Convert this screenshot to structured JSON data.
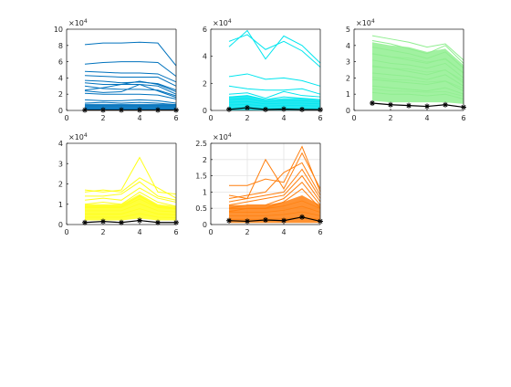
{
  "chart_data": [
    {
      "type": "line",
      "color": "#0072bd",
      "exponent_label": "×10^4",
      "xlim": [
        0,
        6
      ],
      "ylim": [
        0,
        10
      ],
      "xticks": [
        0,
        2,
        4,
        6
      ],
      "yticks": [
        0,
        2,
        4,
        6,
        8,
        10
      ],
      "x": [
        1,
        2,
        3,
        4,
        5,
        6
      ],
      "grid": false,
      "series": [
        {
          "values": [
            8.1,
            8.3,
            8.3,
            8.4,
            8.3,
            5.5
          ]
        },
        {
          "values": [
            5.7,
            5.9,
            6.0,
            6.0,
            5.9,
            4.2
          ]
        },
        {
          "values": [
            4.8,
            4.7,
            4.6,
            4.6,
            4.5,
            3.5
          ]
        },
        {
          "values": [
            4.3,
            4.2,
            4.1,
            4.1,
            4.1,
            3.0
          ]
        },
        {
          "values": [
            3.7,
            3.6,
            3.4,
            3.5,
            3.3,
            2.5
          ]
        },
        {
          "values": [
            3.4,
            3.2,
            3.2,
            3.2,
            3.0,
            2.0
          ]
        },
        {
          "values": [
            2.5,
            2.8,
            3.2,
            3.6,
            3.2,
            2.3
          ]
        },
        {
          "values": [
            3.0,
            2.7,
            2.6,
            2.6,
            2.5,
            1.8
          ]
        },
        {
          "values": [
            2.4,
            2.2,
            2.3,
            3.2,
            2.4,
            1.6
          ]
        },
        {
          "values": [
            2.1,
            2.0,
            2.0,
            2.0,
            1.9,
            1.4
          ]
        },
        {
          "values": [
            1.3,
            1.2,
            1.2,
            1.3,
            1.2,
            0.9
          ]
        },
        {
          "values": [
            0.9,
            1.0,
            0.9,
            1.0,
            0.9,
            0.7
          ]
        }
      ],
      "band": {
        "low": [
          0.0,
          0.0,
          0.0,
          0.0,
          0.0,
          0.0
        ],
        "high": [
          0.8,
          0.8,
          0.8,
          0.8,
          0.8,
          0.8
        ]
      },
      "mean": [
        0.05,
        0.05,
        0.05,
        0.05,
        0.05,
        0.05
      ]
    },
    {
      "type": "line",
      "color": "#00e5ee",
      "exponent_label": "×10^4",
      "xlim": [
        0,
        6
      ],
      "ylim": [
        0,
        6
      ],
      "xticks": [
        0,
        2,
        4,
        6
      ],
      "yticks": [
        0,
        2,
        4,
        6
      ],
      "x": [
        1,
        2,
        3,
        4,
        5,
        6
      ],
      "grid": false,
      "series": [
        {
          "values": [
            4.7,
            5.9,
            3.8,
            5.5,
            4.8,
            3.5
          ]
        },
        {
          "values": [
            5.1,
            5.6,
            4.5,
            5.1,
            4.4,
            3.2
          ]
        },
        {
          "values": [
            2.5,
            2.7,
            2.3,
            2.4,
            2.2,
            1.8
          ]
        },
        {
          "values": [
            1.8,
            1.6,
            1.5,
            1.5,
            1.6,
            1.2
          ]
        },
        {
          "values": [
            1.2,
            1.3,
            0.9,
            1.4,
            1.1,
            1.0
          ]
        },
        {
          "values": [
            1.0,
            1.1,
            0.8,
            1.0,
            0.9,
            0.8
          ]
        }
      ],
      "band": {
        "low": [
          0.0,
          0.0,
          0.0,
          0.0,
          0.0,
          0.0
        ],
        "high": [
          1.0,
          1.1,
          0.8,
          0.9,
          0.9,
          0.8
        ]
      },
      "mean": [
        0.08,
        0.2,
        0.07,
        0.1,
        0.07,
        0.06
      ]
    },
    {
      "type": "line",
      "color": "#90ee90",
      "exponent_label": "×10^4",
      "xlim": [
        0,
        6
      ],
      "ylim": [
        0,
        5
      ],
      "xticks": [
        0,
        2,
        4,
        6
      ],
      "yticks": [
        0,
        1,
        2,
        3,
        4,
        5
      ],
      "x": [
        1,
        2,
        3,
        4,
        5,
        6
      ],
      "grid": false,
      "series": [
        {
          "values": [
            4.6,
            4.4,
            4.2,
            3.9,
            4.1,
            3.1
          ]
        },
        {
          "values": [
            4.3,
            4.1,
            3.8,
            3.5,
            4.0,
            2.9
          ]
        },
        {
          "values": [
            3.9,
            3.7,
            3.5,
            3.2,
            3.6,
            2.6
          ]
        },
        {
          "values": [
            3.5,
            3.3,
            3.1,
            2.9,
            3.2,
            2.3
          ]
        },
        {
          "values": [
            3.1,
            2.9,
            2.8,
            2.6,
            2.9,
            2.0
          ]
        },
        {
          "values": [
            2.7,
            2.6,
            2.4,
            2.2,
            2.5,
            1.7
          ]
        },
        {
          "values": [
            2.3,
            2.2,
            2.1,
            1.9,
            2.2,
            1.5
          ]
        },
        {
          "values": [
            1.9,
            1.8,
            1.7,
            1.6,
            1.8,
            1.2
          ]
        },
        {
          "values": [
            1.5,
            1.4,
            1.3,
            1.2,
            1.4,
            1.0
          ]
        },
        {
          "values": [
            1.1,
            1.0,
            1.0,
            0.9,
            1.0,
            0.7
          ]
        }
      ],
      "band": {
        "low": [
          0.6,
          0.5,
          0.5,
          0.5,
          0.5,
          0.4
        ],
        "high": [
          4.2,
          4.0,
          3.9,
          3.6,
          3.8,
          2.8
        ]
      },
      "mean": [
        0.45,
        0.35,
        0.3,
        0.25,
        0.35,
        0.2
      ]
    },
    {
      "type": "line",
      "color": "#ffff1a",
      "exponent_label": "×10^4",
      "xlim": [
        0,
        6
      ],
      "ylim": [
        0,
        4
      ],
      "xticks": [
        0,
        2,
        4,
        6
      ],
      "yticks": [
        0,
        1,
        2,
        3,
        4
      ],
      "x": [
        1,
        2,
        3,
        4,
        5,
        6
      ],
      "grid": false,
      "series": [
        {
          "values": [
            1.7,
            1.6,
            1.7,
            3.3,
            1.6,
            1.5
          ]
        },
        {
          "values": [
            1.6,
            1.7,
            1.6,
            2.3,
            1.8,
            1.3
          ]
        },
        {
          "values": [
            1.4,
            1.4,
            1.5,
            2.1,
            1.4,
            1.2
          ]
        },
        {
          "values": [
            1.2,
            1.3,
            1.2,
            1.8,
            1.3,
            1.1
          ]
        },
        {
          "values": [
            1.0,
            1.1,
            1.0,
            1.6,
            1.1,
            0.9
          ]
        },
        {
          "values": [
            0.9,
            0.9,
            0.9,
            1.4,
            0.9,
            0.8
          ]
        }
      ],
      "band": {
        "low": [
          0.2,
          0.2,
          0.2,
          0.3,
          0.2,
          0.2
        ],
        "high": [
          1.0,
          1.0,
          1.0,
          1.5,
          1.0,
          0.9
        ]
      },
      "mean": [
        0.1,
        0.15,
        0.1,
        0.2,
        0.1,
        0.1
      ]
    },
    {
      "type": "line",
      "color": "#ff7f0e",
      "exponent_label": "×10^4",
      "xlim": [
        0,
        6
      ],
      "ylim": [
        0,
        2.5
      ],
      "xticks": [
        0,
        2,
        4,
        6
      ],
      "yticks": [
        0,
        0.5,
        1,
        1.5,
        2,
        2.5
      ],
      "x": [
        1,
        2,
        3,
        4,
        5,
        6
      ],
      "grid": true,
      "series": [
        {
          "values": [
            1.2,
            1.2,
            1.4,
            1.3,
            2.4,
            1.0
          ]
        },
        {
          "values": [
            0.9,
            0.8,
            2.0,
            1.1,
            2.2,
            1.1
          ]
        },
        {
          "values": [
            0.8,
            0.9,
            1.0,
            1.6,
            1.9,
            0.9
          ]
        },
        {
          "values": [
            0.7,
            0.8,
            0.9,
            1.0,
            1.7,
            0.8
          ]
        },
        {
          "values": [
            0.6,
            0.7,
            0.8,
            0.9,
            1.5,
            0.7
          ]
        },
        {
          "values": [
            0.5,
            0.6,
            0.6,
            0.8,
            1.3,
            0.6
          ]
        },
        {
          "values": [
            0.4,
            0.5,
            0.5,
            0.7,
            1.1,
            0.5
          ]
        }
      ],
      "band": {
        "low": [
          0.05,
          0.05,
          0.05,
          0.05,
          0.05,
          0.05
        ],
        "high": [
          0.6,
          0.6,
          0.6,
          0.7,
          0.9,
          0.6
        ]
      },
      "mean": [
        0.12,
        0.1,
        0.14,
        0.12,
        0.23,
        0.1
      ]
    }
  ]
}
